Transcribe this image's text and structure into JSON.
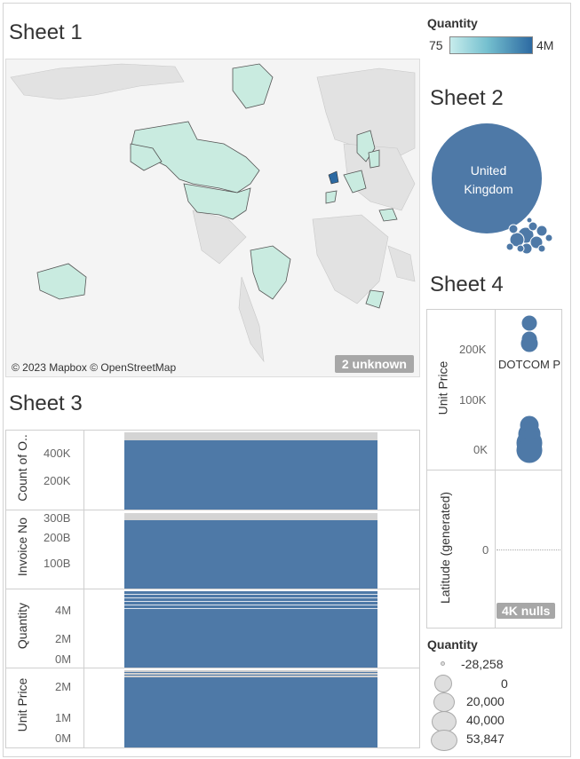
{
  "sheet1": {
    "title": "Sheet 1",
    "attribution": "© 2023 Mapbox © OpenStreetMap",
    "unknown_badge": "2 unknown"
  },
  "color_legend": {
    "title": "Quantity",
    "min_label": "75",
    "max_label": "4M",
    "colors": {
      "low": "#c7ecec",
      "high": "#2d6aa2"
    }
  },
  "sheet2": {
    "title": "Sheet 2",
    "main_bubble_label": "United Kingdom",
    "bubble_color": "#4e79a7"
  },
  "sheet3": {
    "title": "Sheet 3",
    "rows": [
      {
        "label": "Count of O..",
        "ticks": [
          "400K",
          "200K"
        ]
      },
      {
        "label": "Invoice No",
        "ticks": [
          "300B",
          "200B",
          "100B"
        ]
      },
      {
        "label": "Quantity",
        "ticks": [
          "4M",
          "2M",
          "0M"
        ]
      },
      {
        "label": "Unit Price",
        "ticks": [
          "2M",
          "1M",
          "0M"
        ]
      }
    ]
  },
  "sheet4": {
    "title": "Sheet 4",
    "unit_price_label": "Unit Price",
    "latitude_label": "Latitude (generated)",
    "unit_price_ticks": [
      "200K",
      "100K",
      "0K"
    ],
    "latitude_tick": "0",
    "column_header": "DOTCOM P",
    "nulls_badge": "4K nulls"
  },
  "size_legend": {
    "title": "Quantity",
    "items": [
      "-28,258",
      "0",
      "20,000",
      "40,000",
      "53,847"
    ]
  }
}
